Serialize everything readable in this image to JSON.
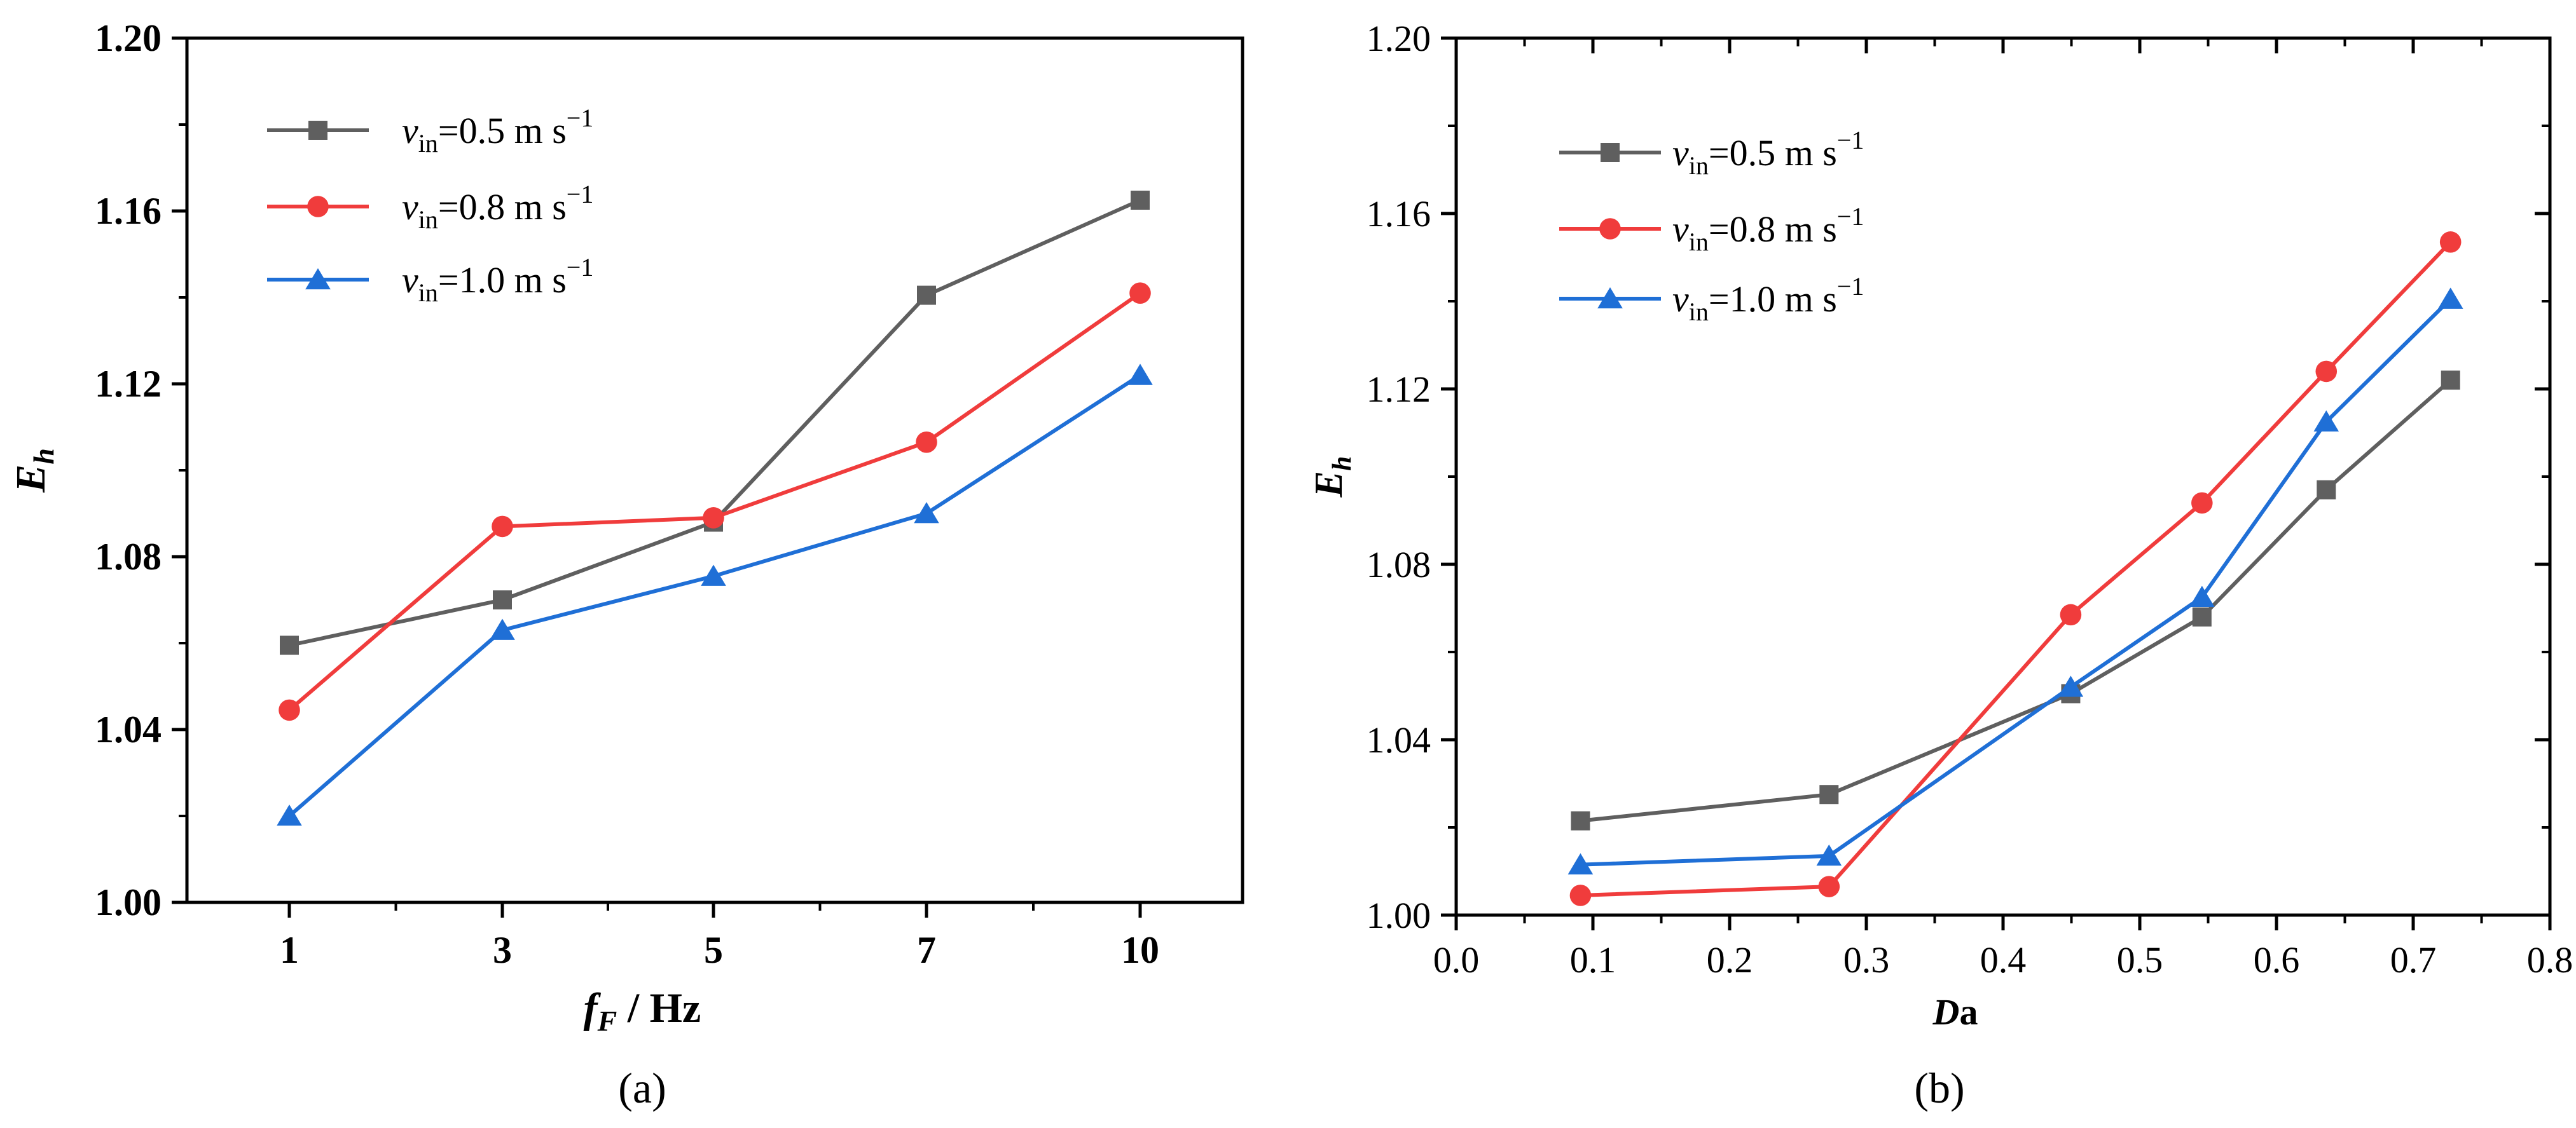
{
  "chart_data": [
    {
      "type": "line",
      "panel_label": "(a)",
      "xlabel": {
        "main": "f",
        "sub": "F",
        "rest": " / Hz"
      },
      "ylabel": {
        "main": "E",
        "sub": "h"
      },
      "x_categories": [
        "1",
        "3",
        "5",
        "7",
        "10"
      ],
      "ylim": [
        1.0,
        1.2
      ],
      "yticks": [
        1.0,
        1.04,
        1.08,
        1.12,
        1.16,
        1.2
      ],
      "ytick_labels": [
        "1.00",
        "1.04",
        "1.08",
        "1.12",
        "1.16",
        "1.20"
      ],
      "legend_position": "top-left",
      "series": [
        {
          "name": "vin=0.5 m s-1",
          "label_main": "v",
          "label_sub": "in",
          "label_rest": "=0.5 m s",
          "label_sup": "−1",
          "color": "#5f5f5f",
          "marker": "square",
          "values": [
            1.0595,
            1.07,
            1.088,
            1.1405,
            1.1625
          ]
        },
        {
          "name": "vin=0.8 m s-1",
          "label_main": "v",
          "label_sub": "in",
          "label_rest": "=0.8 m s",
          "label_sup": "−1",
          "color": "#f03c3c",
          "marker": "circle",
          "values": [
            1.0445,
            1.087,
            1.089,
            1.1065,
            1.141
          ]
        },
        {
          "name": "vin=1.0 m s-1",
          "label_main": "v",
          "label_sub": "in",
          "label_rest": "=1.0 m s",
          "label_sup": "−1",
          "color": "#1f6fd6",
          "marker": "triangle",
          "values": [
            1.02,
            1.063,
            1.0755,
            1.09,
            1.122
          ]
        }
      ]
    },
    {
      "type": "line",
      "panel_label": "(b)",
      "xlabel": {
        "main": "D",
        "rest": "a"
      },
      "ylabel": {
        "main": "E",
        "sub": "h"
      },
      "xlim": [
        0.0,
        0.8
      ],
      "xticks": [
        0.0,
        0.1,
        0.2,
        0.3,
        0.4,
        0.5,
        0.6,
        0.7,
        0.8
      ],
      "xtick_labels": [
        "0.0",
        "0.1",
        "0.2",
        "0.3",
        "0.4",
        "0.5",
        "0.6",
        "0.7",
        "0.8"
      ],
      "ylim": [
        1.0,
        1.2
      ],
      "yticks": [
        1.0,
        1.04,
        1.08,
        1.12,
        1.16,
        1.2
      ],
      "ytick_labels": [
        "1.00",
        "1.04",
        "1.08",
        "1.12",
        "1.16",
        "1.20"
      ],
      "x": [
        0.0909,
        0.2727,
        0.4495,
        0.5455,
        0.6364,
        0.7273
      ],
      "legend_position": "top-left",
      "series": [
        {
          "name": "vin=0.5 m s-1",
          "label_main": "v",
          "label_sub": "in",
          "label_rest": "=0.5 m s",
          "label_sup": "−1",
          "color": "#5f5f5f",
          "marker": "square",
          "values": [
            1.0215,
            1.0275,
            1.0505,
            1.068,
            1.097,
            1.122
          ]
        },
        {
          "name": "vin=0.8 m s-1",
          "label_main": "v",
          "label_sub": "in",
          "label_rest": "=0.8 m s",
          "label_sup": "−1",
          "color": "#f03c3c",
          "marker": "circle",
          "values": [
            1.0045,
            1.0065,
            1.0685,
            1.094,
            1.124,
            1.1535
          ]
        },
        {
          "name": "vin=1.0 m s-1",
          "label_main": "v",
          "label_sub": "in",
          "label_rest": "=1.0 m s",
          "label_sup": "−1",
          "color": "#1f6fd6",
          "marker": "triangle",
          "values": [
            1.0115,
            1.0135,
            1.052,
            1.0725,
            1.1125,
            1.1405
          ]
        }
      ]
    }
  ]
}
